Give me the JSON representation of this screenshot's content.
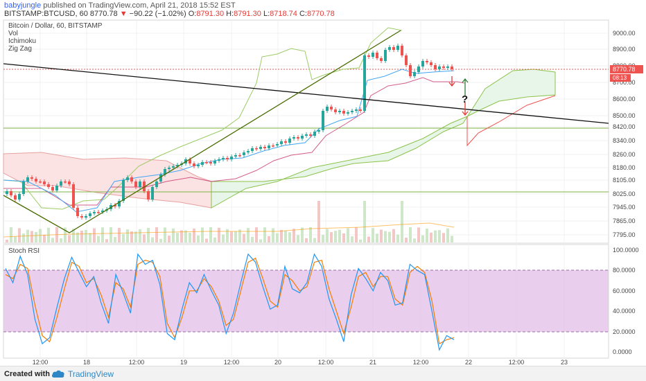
{
  "header": {
    "username": "babyjungle",
    "published_text": "published on TradingView.com, April 21, 2018 15:52 EST",
    "symbol": "BITSTAMP:BTCUSD, 60",
    "last_price": "8770.78",
    "change": "−90.22 (−1.02%)",
    "open_label": "O:",
    "open": "8791.30",
    "high_label": "H:",
    "high": "8791.30",
    "low_label": "L:",
    "low": "8718.74",
    "close_label": "C:",
    "close": "8770.78"
  },
  "indicators": [
    "Bitcoin / Dollar, 60, BITSTAMP",
    "Vol",
    "Ichimoku",
    "Zig Zag"
  ],
  "price_tag": "8770.78",
  "time_tag": "08:13",
  "question_mark": "?",
  "stoch_label": "Stoch RSI",
  "footer": {
    "created_with": "Created with",
    "brand": "TradingView"
  },
  "colors": {
    "up_candle": "#26a69a",
    "down_candle": "#ef5350",
    "cloud_green": "#e8f5e9",
    "cloud_red": "#fbe3e3",
    "stoch_band": "#e1bee7",
    "stoch_k": "#2196f3",
    "stoch_d": "#f57c00",
    "zigzag": "#4a6b00",
    "trendline": "#000000",
    "price_tag": "#ef5350"
  },
  "chart_data": [
    {
      "type": "candlestick",
      "title": "Bitcoin / Dollar, 60, BITSTAMP",
      "y_axis_ticks": [
        "9000.00",
        "8900.00",
        "8800.00",
        "8700.00",
        "8600.00",
        "8500.00",
        "8420.00",
        "8340.00",
        "8260.00",
        "8180.00",
        "8105.00",
        "8025.00",
        "7945.00",
        "7865.00",
        "7795.00"
      ],
      "x_axis_ticks": [
        "12:00",
        "18",
        "12:00",
        "19",
        "12:00",
        "20",
        "12:00",
        "21",
        "12:00",
        "22",
        "12:00",
        "23"
      ],
      "last_price": 8770.78,
      "annotations": [
        "?"
      ]
    },
    {
      "type": "line",
      "title": "Stoch RSI",
      "y_axis_ticks": [
        "100.0000",
        "80.0000",
        "60.0000",
        "40.0000",
        "20.0000",
        "0.0000"
      ],
      "band": [
        20,
        80
      ],
      "series": [
        {
          "values": [
            82,
            68,
            94,
            76,
            32,
            8,
            14,
            44,
            72,
            93,
            78,
            64,
            74,
            48,
            28,
            76,
            58,
            38,
            96,
            86,
            90,
            66,
            18,
            12,
            42,
            68,
            58,
            76,
            60,
            46,
            18,
            38,
            68,
            96,
            88,
            64,
            42,
            46,
            84,
            62,
            58,
            68,
            96,
            84,
            52,
            32,
            10,
            56,
            82,
            72,
            60,
            78,
            70,
            46,
            48,
            86,
            80,
            76,
            40,
            2,
            16,
            12
          ]
        },
        {
          "values": [
            76,
            72,
            86,
            82,
            46,
            16,
            10,
            34,
            62,
            88,
            84,
            68,
            72,
            56,
            34,
            68,
            62,
            44,
            86,
            90,
            88,
            74,
            28,
            14,
            34,
            60,
            60,
            72,
            64,
            50,
            26,
            32,
            60,
            88,
            92,
            72,
            50,
            44,
            76,
            70,
            60,
            64,
            88,
            90,
            62,
            40,
            18,
            44,
            74,
            78,
            64,
            74,
            74,
            52,
            46,
            78,
            84,
            78,
            50,
            8,
            12,
            14
          ]
        }
      ]
    }
  ]
}
